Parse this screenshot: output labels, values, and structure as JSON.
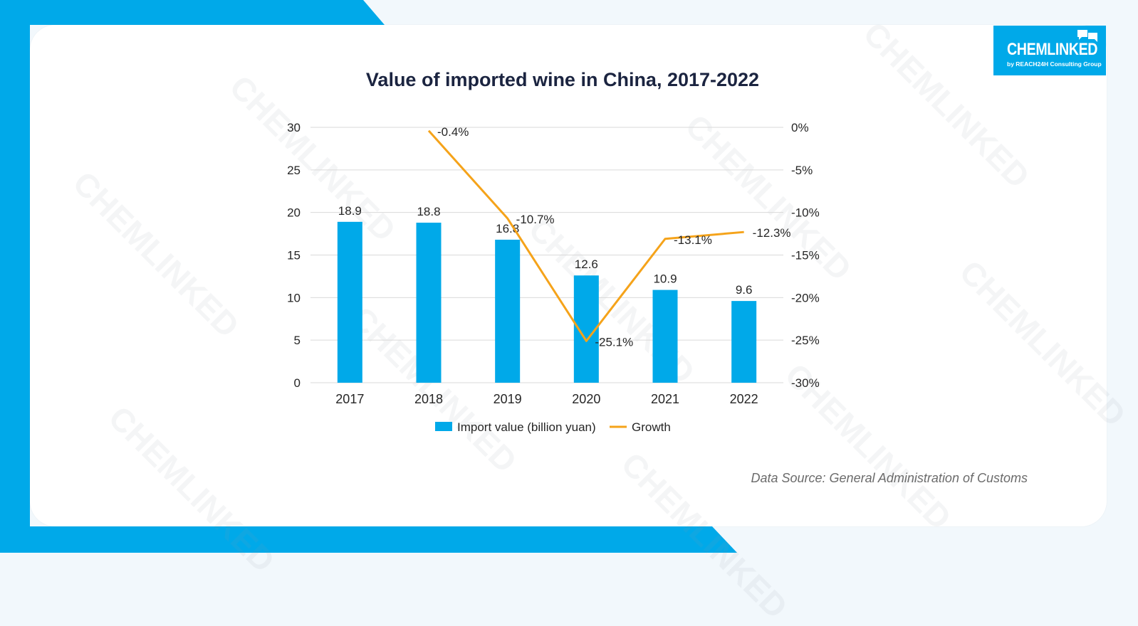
{
  "brand": {
    "name": "CHEMLINKED",
    "tagline": "by REACH24H Consulting Group",
    "color": "#00a9e9"
  },
  "source_note": "Data Source: General Administration of Customs",
  "chart_data": {
    "type": "bar",
    "title": "Value of imported wine in China, 2017-2022",
    "categories": [
      "2017",
      "2018",
      "2019",
      "2020",
      "2021",
      "2022"
    ],
    "series": [
      {
        "name": "Import value (billion yuan)",
        "type": "bar",
        "axis": "left",
        "color": "#00a9e9",
        "values": [
          18.9,
          18.8,
          16.8,
          12.6,
          10.9,
          9.6
        ],
        "labels": [
          "18.9",
          "18.8",
          "16.8",
          "12.6",
          "10.9",
          "9.6"
        ]
      },
      {
        "name": "Growth",
        "type": "line",
        "axis": "right",
        "color": "#f5a31a",
        "values": [
          null,
          -0.4,
          -10.7,
          -25.1,
          -13.1,
          -12.3
        ],
        "labels": [
          "",
          "-0.4%",
          "-10.7%",
          "-25.1%",
          "-13.1%",
          "-12.3%"
        ]
      }
    ],
    "y_left": {
      "ylim": [
        0,
        30
      ],
      "ticks": [
        0,
        5,
        10,
        15,
        20,
        25,
        30
      ],
      "tick_labels": [
        "0",
        "5",
        "10",
        "15",
        "20",
        "25",
        "30"
      ]
    },
    "y_right": {
      "ylim": [
        -30,
        0
      ],
      "ticks": [
        0,
        -5,
        -10,
        -15,
        -20,
        -25,
        -30
      ],
      "tick_labels": [
        "0%",
        "-5%",
        "-10%",
        "-15%",
        "-20%",
        "-25%",
        "-30%"
      ]
    },
    "xlabel": "",
    "ylabel": "",
    "grid": true,
    "legend": "bottom"
  }
}
